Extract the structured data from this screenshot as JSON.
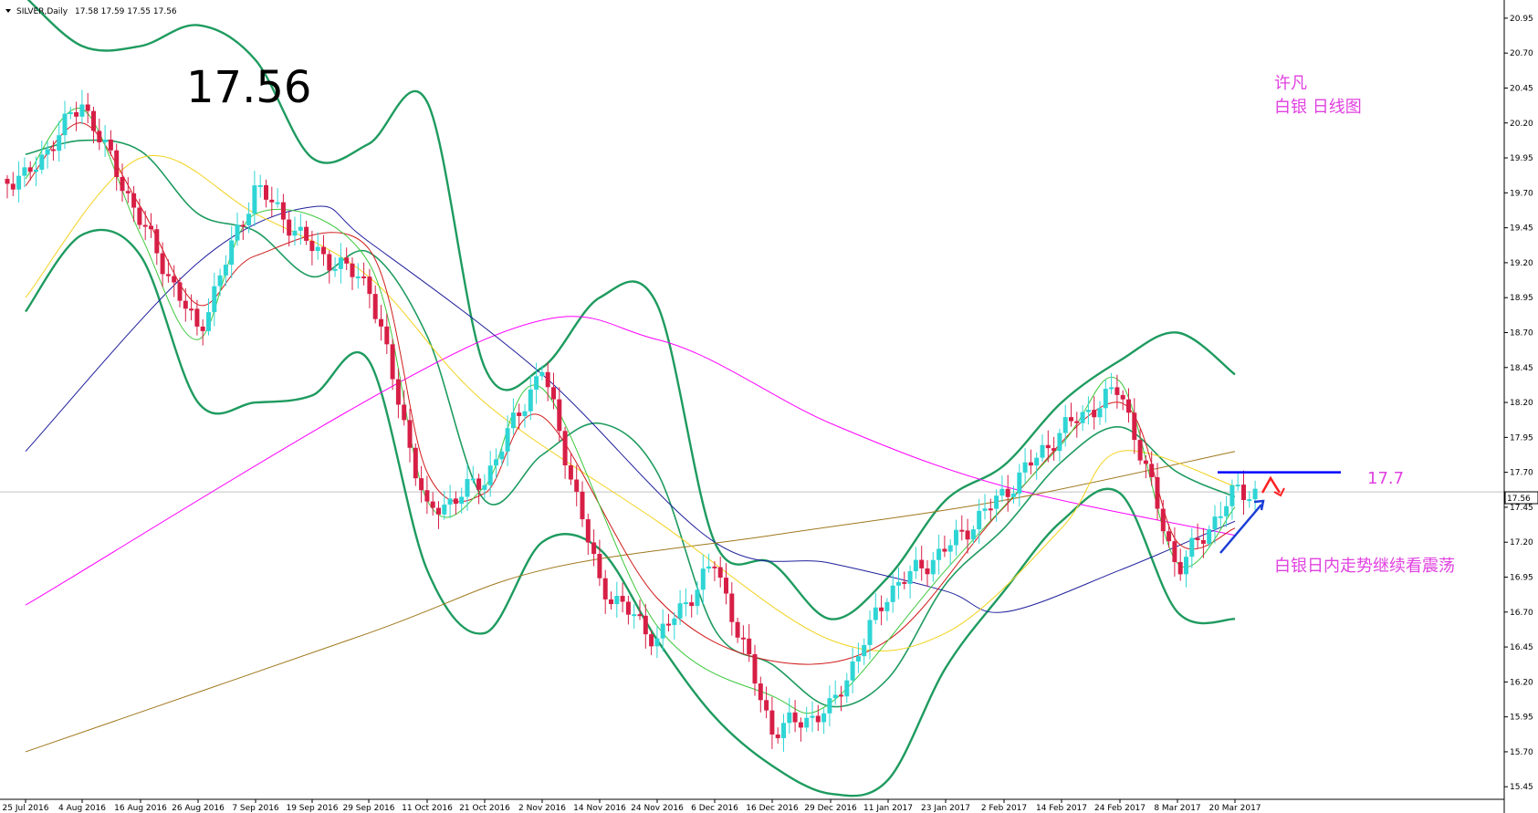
{
  "header": {
    "symbol_text": "SILVER,Daily",
    "ohlc_text": "17.58 17.59 17.55 17.56"
  },
  "big_price": "17.56",
  "annotations": {
    "author": "许凡",
    "subtitle": "白银 日线图",
    "forecast": "白银日内走势继续看震荡",
    "level_label": "17.7"
  },
  "price_tag": "17.56",
  "chart_data": {
    "type": "candlestick",
    "symbol": "SILVER",
    "timeframe": "Daily",
    "last_open": 17.58,
    "last_high": 17.59,
    "last_low": 17.55,
    "last_close": 17.56,
    "ylim": [
      15.36,
      21.08
    ],
    "y_ticks": [
      "20.95",
      "20.70",
      "20.45",
      "20.20",
      "19.95",
      "19.70",
      "19.45",
      "19.20",
      "18.95",
      "18.70",
      "18.45",
      "18.20",
      "17.95",
      "17.70",
      "17.45",
      "17.20",
      "16.95",
      "16.70",
      "16.45",
      "16.20",
      "15.95",
      "15.70",
      "15.45"
    ],
    "x_ticks": [
      "25 Jul 2016",
      "4 Aug 2016",
      "16 Aug 2016",
      "26 Aug 2016",
      "7 Sep 2016",
      "19 Sep 2016",
      "29 Sep 2016",
      "11 Oct 2016",
      "21 Oct 2016",
      "2 Nov 2016",
      "14 Nov 2016",
      "24 Nov 2016",
      "6 Dec 2016",
      "16 Dec 2016",
      "29 Dec 2016",
      "11 Jan 2017",
      "23 Jan 2017",
      "2 Feb 2017",
      "14 Feb 2017",
      "24 Feb 2017",
      "8 Mar 2017",
      "20 Mar 2017"
    ],
    "current_price_line": 17.56,
    "resistance_level": 17.7,
    "close_path": [
      {
        "x": "25 Jul 2016",
        "y": 19.8
      },
      {
        "x": "4 Aug 2016",
        "y": 20.35
      },
      {
        "x": "16 Aug 2016",
        "y": 19.5
      },
      {
        "x": "26 Aug 2016",
        "y": 18.7
      },
      {
        "x": "7 Sep 2016",
        "y": 19.75
      },
      {
        "x": "19 Sep 2016",
        "y": 19.3
      },
      {
        "x": "29 Sep 2016",
        "y": 19.05
      },
      {
        "x": "11 Oct 2016",
        "y": 17.4
      },
      {
        "x": "21 Oct 2016",
        "y": 17.65
      },
      {
        "x": "2 Nov 2016",
        "y": 18.45
      },
      {
        "x": "14 Nov 2016",
        "y": 16.9
      },
      {
        "x": "24 Nov 2016",
        "y": 16.5
      },
      {
        "x": "6 Dec 2016",
        "y": 17.05
      },
      {
        "x": "16 Dec 2016",
        "y": 15.85
      },
      {
        "x": "29 Dec 2016",
        "y": 16.0
      },
      {
        "x": "11 Jan 2017",
        "y": 16.85
      },
      {
        "x": "23 Jan 2017",
        "y": 17.15
      },
      {
        "x": "2 Feb 2017",
        "y": 17.55
      },
      {
        "x": "14 Feb 2017",
        "y": 18.0
      },
      {
        "x": "24 Feb 2017",
        "y": 18.3
      },
      {
        "x": "8 Mar 2017",
        "y": 17.0
      },
      {
        "x": "20 Mar 2017",
        "y": 17.56
      }
    ],
    "bollinger_upper": [
      {
        "x": "25 Jul 2016",
        "y": 21.1
      },
      {
        "x": "4 Aug 2016",
        "y": 20.75
      },
      {
        "x": "16 Aug 2016",
        "y": 20.75
      },
      {
        "x": "26 Aug 2016",
        "y": 20.9
      },
      {
        "x": "7 Sep 2016",
        "y": 20.65
      },
      {
        "x": "19 Sep 2016",
        "y": 19.95
      },
      {
        "x": "29 Sep 2016",
        "y": 20.05
      },
      {
        "x": "11 Oct 2016",
        "y": 20.35
      },
      {
        "x": "21 Oct 2016",
        "y": 18.45
      },
      {
        "x": "2 Nov 2016",
        "y": 18.45
      },
      {
        "x": "14 Nov 2016",
        "y": 18.95
      },
      {
        "x": "24 Nov 2016",
        "y": 18.9
      },
      {
        "x": "6 Dec 2016",
        "y": 17.2
      },
      {
        "x": "16 Dec 2016",
        "y": 17.05
      },
      {
        "x": "29 Dec 2016",
        "y": 16.65
      },
      {
        "x": "11 Jan 2017",
        "y": 16.95
      },
      {
        "x": "23 Jan 2017",
        "y": 17.5
      },
      {
        "x": "2 Feb 2017",
        "y": 17.75
      },
      {
        "x": "14 Feb 2017",
        "y": 18.2
      },
      {
        "x": "24 Feb 2017",
        "y": 18.5
      },
      {
        "x": "8 Mar 2017",
        "y": 18.7
      },
      {
        "x": "20 Mar 2017",
        "y": 18.4
      }
    ],
    "bollinger_lower": [
      {
        "x": "25 Jul 2016",
        "y": 18.85
      },
      {
        "x": "4 Aug 2016",
        "y": 19.4
      },
      {
        "x": "16 Aug 2016",
        "y": 19.25
      },
      {
        "x": "26 Aug 2016",
        "y": 18.2
      },
      {
        "x": "7 Sep 2016",
        "y": 18.2
      },
      {
        "x": "19 Sep 2016",
        "y": 18.25
      },
      {
        "x": "29 Sep 2016",
        "y": 18.5
      },
      {
        "x": "11 Oct 2016",
        "y": 17.0
      },
      {
        "x": "21 Oct 2016",
        "y": 16.55
      },
      {
        "x": "2 Nov 2016",
        "y": 17.2
      },
      {
        "x": "14 Nov 2016",
        "y": 17.15
      },
      {
        "x": "24 Nov 2016",
        "y": 16.5
      },
      {
        "x": "6 Dec 2016",
        "y": 15.95
      },
      {
        "x": "16 Dec 2016",
        "y": 15.6
      },
      {
        "x": "29 Dec 2016",
        "y": 15.4
      },
      {
        "x": "11 Jan 2017",
        "y": 15.5
      },
      {
        "x": "23 Jan 2017",
        "y": 16.3
      },
      {
        "x": "2 Feb 2017",
        "y": 16.85
      },
      {
        "x": "14 Feb 2017",
        "y": 17.35
      },
      {
        "x": "24 Feb 2017",
        "y": 17.55
      },
      {
        "x": "8 Mar 2017",
        "y": 16.7
      },
      {
        "x": "20 Mar 2017",
        "y": 16.65
      }
    ],
    "moving_averages": [
      {
        "name": "",
        "color": "#ff00ff",
        "points": [
          {
            "x": "25 Jul 2016",
            "y": 16.75
          },
          {
            "x": "21 Oct 2016",
            "y": 18.65
          },
          {
            "x": "24 Nov 2016",
            "y": 18.65
          },
          {
            "x": "29 Dec 2016",
            "y": 18.05
          },
          {
            "x": "2 Feb 2017",
            "y": 17.6
          },
          {
            "x": "20 Mar 2017",
            "y": 17.25
          }
        ]
      },
      {
        "name": "",
        "color": "#1f1f9c",
        "points": [
          {
            "x": "25 Jul 2016",
            "y": 17.85
          },
          {
            "x": "26 Aug 2016",
            "y": 19.2
          },
          {
            "x": "19 Sep 2016",
            "y": 19.6
          },
          {
            "x": "29 Sep 2016",
            "y": 19.35
          },
          {
            "x": "2 Nov 2016",
            "y": 18.4
          },
          {
            "x": "6 Dec 2016",
            "y": 17.2
          },
          {
            "x": "29 Dec 2016",
            "y": 17.05
          },
          {
            "x": "23 Jan 2017",
            "y": 16.85
          },
          {
            "x": "2 Feb 2017",
            "y": 16.7
          },
          {
            "x": "24 Feb 2017",
            "y": 17.0
          },
          {
            "x": "20 Mar 2017",
            "y": 17.35
          }
        ]
      },
      {
        "name": "",
        "color": "#a0781e",
        "points": [
          {
            "x": "25 Jul 2016",
            "y": 15.7
          },
          {
            "x": "29 Sep 2016",
            "y": 16.55
          },
          {
            "x": "2 Nov 2016",
            "y": 17.0
          },
          {
            "x": "16 Dec 2016",
            "y": 17.25
          },
          {
            "x": "2 Feb 2017",
            "y": 17.5
          },
          {
            "x": "20 Mar 2017",
            "y": 17.85
          }
        ]
      },
      {
        "name": "",
        "color": "#f2d21e",
        "points": [
          {
            "x": "25 Jul 2016",
            "y": 18.95
          },
          {
            "x": "16 Aug 2016",
            "y": 19.95
          },
          {
            "x": "7 Sep 2016",
            "y": 19.55
          },
          {
            "x": "29 Sep 2016",
            "y": 19.1
          },
          {
            "x": "21 Oct 2016",
            "y": 18.2
          },
          {
            "x": "24 Nov 2016",
            "y": 17.35
          },
          {
            "x": "29 Dec 2016",
            "y": 16.5
          },
          {
            "x": "23 Jan 2017",
            "y": 16.55
          },
          {
            "x": "14 Feb 2017",
            "y": 17.3
          },
          {
            "x": "24 Feb 2017",
            "y": 17.85
          },
          {
            "x": "20 Mar 2017",
            "y": 17.6
          }
        ]
      },
      {
        "name": "",
        "color": "#d01c1c",
        "points": [
          {
            "x": "25 Jul 2016",
            "y": 19.75
          },
          {
            "x": "4 Aug 2016",
            "y": 20.2
          },
          {
            "x": "16 Aug 2016",
            "y": 19.6
          },
          {
            "x": "26 Aug 2016",
            "y": 18.9
          },
          {
            "x": "7 Sep 2016",
            "y": 19.25
          },
          {
            "x": "29 Sep 2016",
            "y": 19.3
          },
          {
            "x": "11 Oct 2016",
            "y": 17.7
          },
          {
            "x": "21 Oct 2016",
            "y": 17.55
          },
          {
            "x": "2 Nov 2016",
            "y": 18.1
          },
          {
            "x": "24 Nov 2016",
            "y": 16.8
          },
          {
            "x": "16 Dec 2016",
            "y": 16.35
          },
          {
            "x": "11 Jan 2017",
            "y": 16.5
          },
          {
            "x": "2 Feb 2017",
            "y": 17.45
          },
          {
            "x": "24 Feb 2017",
            "y": 18.2
          },
          {
            "x": "8 Mar 2017",
            "y": 17.2
          },
          {
            "x": "20 Mar 2017",
            "y": 17.3
          }
        ]
      },
      {
        "name": "",
        "color": "#3cc83c",
        "points": [
          {
            "x": "25 Jul 2016",
            "y": 19.8
          },
          {
            "x": "4 Aug 2016",
            "y": 20.3
          },
          {
            "x": "16 Aug 2016",
            "y": 19.4
          },
          {
            "x": "26 Aug 2016",
            "y": 18.65
          },
          {
            "x": "7 Sep 2016",
            "y": 19.55
          },
          {
            "x": "29 Sep 2016",
            "y": 19.2
          },
          {
            "x": "11 Oct 2016",
            "y": 17.5
          },
          {
            "x": "21 Oct 2016",
            "y": 17.6
          },
          {
            "x": "2 Nov 2016",
            "y": 18.3
          },
          {
            "x": "24 Nov 2016",
            "y": 16.6
          },
          {
            "x": "16 Dec 2016",
            "y": 16.1
          },
          {
            "x": "29 Dec 2016",
            "y": 16.05
          },
          {
            "x": "23 Jan 2017",
            "y": 17.0
          },
          {
            "x": "14 Feb 2017",
            "y": 17.9
          },
          {
            "x": "24 Feb 2017",
            "y": 18.35
          },
          {
            "x": "8 Mar 2017",
            "y": 17.05
          },
          {
            "x": "20 Mar 2017",
            "y": 17.45
          }
        ]
      }
    ],
    "colors": {
      "bull": "#2fd5d5",
      "bear": "#d71f46",
      "bands": "#1e9b5f",
      "level_line": "#0000ff",
      "annotation": "#e040e0",
      "arrow_up": "#1a3cd6",
      "arrow_down": "#ff2020"
    }
  }
}
